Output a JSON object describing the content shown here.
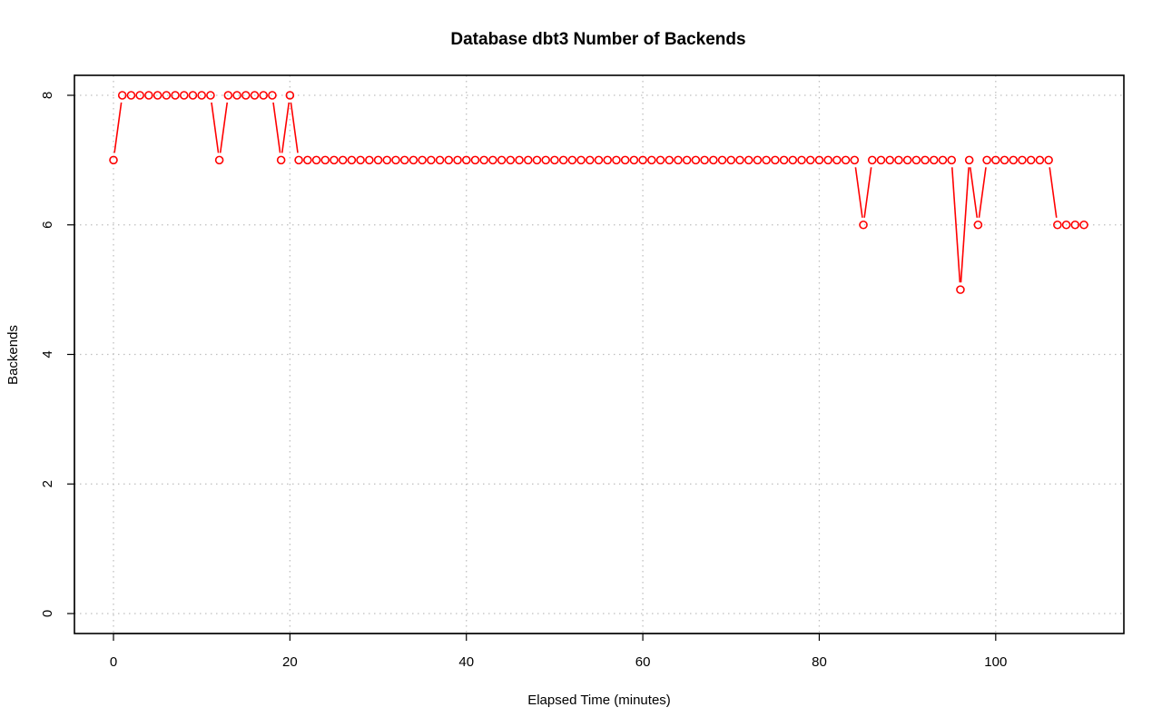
{
  "chart_data": {
    "type": "line",
    "title": "Database dbt3 Number of Backends",
    "xlabel": "Elapsed Time (minutes)",
    "ylabel": "Backends",
    "xlim": [
      -2.3,
      116.6
    ],
    "ylim": [
      -0.3,
      8.3
    ],
    "xticks": [
      0,
      20,
      40,
      60,
      80,
      100
    ],
    "yticks": [
      0,
      2,
      4,
      6,
      8
    ],
    "grid": true,
    "line_style": "points-and-lines",
    "series_color": "#ff0000",
    "x": [
      0,
      1,
      2,
      3,
      4,
      5,
      6,
      7,
      8,
      9,
      10,
      11,
      12,
      13,
      14,
      15,
      16,
      17,
      18,
      19,
      20,
      21,
      22,
      23,
      24,
      25,
      26,
      27,
      28,
      29,
      30,
      31,
      32,
      33,
      34,
      35,
      36,
      37,
      38,
      39,
      40,
      41,
      42,
      43,
      44,
      45,
      46,
      47,
      48,
      49,
      50,
      51,
      52,
      53,
      54,
      55,
      56,
      57,
      58,
      59,
      60,
      61,
      62,
      63,
      64,
      65,
      66,
      67,
      68,
      69,
      70,
      71,
      72,
      73,
      74,
      75,
      76,
      77,
      78,
      79,
      80,
      81,
      82,
      83,
      84,
      85,
      86,
      87,
      88,
      89,
      90,
      91,
      92,
      93,
      94,
      95,
      96,
      97,
      98,
      99,
      100,
      101,
      102,
      103,
      104,
      105,
      106,
      107,
      108,
      109,
      110
    ],
    "y": [
      7,
      8,
      8,
      8,
      8,
      8,
      8,
      8,
      8,
      8,
      8,
      8,
      7,
      8,
      8,
      8,
      8,
      8,
      8,
      7,
      8,
      7,
      7,
      7,
      7,
      7,
      7,
      7,
      7,
      7,
      7,
      7,
      7,
      7,
      7,
      7,
      7,
      7,
      7,
      7,
      7,
      7,
      7,
      7,
      7,
      7,
      7,
      7,
      7,
      7,
      7,
      7,
      7,
      7,
      7,
      7,
      7,
      7,
      7,
      7,
      7,
      7,
      7,
      7,
      7,
      7,
      7,
      7,
      7,
      7,
      7,
      7,
      7,
      7,
      7,
      7,
      7,
      7,
      7,
      7,
      7,
      7,
      7,
      7,
      7,
      6,
      7,
      7,
      7,
      7,
      7,
      7,
      7,
      7,
      7,
      7,
      5,
      7,
      6,
      7,
      7,
      7,
      7,
      7,
      7,
      7,
      7,
      6,
      6,
      6,
      6
    ]
  }
}
